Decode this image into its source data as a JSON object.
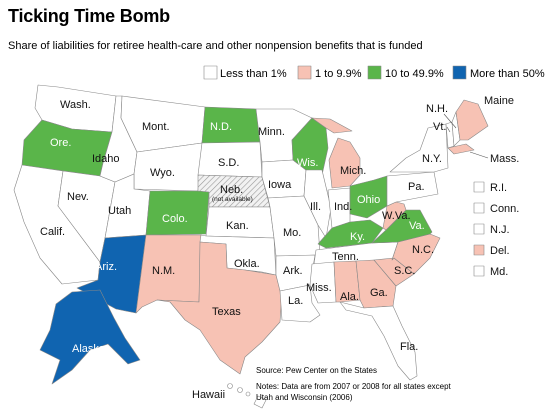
{
  "title": "Ticking Time Bomb",
  "subtitle": "Share of liabilities for retiree health-care and other nonpension benefits that is funded",
  "colors": {
    "less_than_1": "#ffffff",
    "1_to_9_9": "#f7c2b4",
    "10_to_49_9": "#5ab54a",
    "more_than_50": "#1064b0",
    "not_available": "hatch-gray",
    "border": "#888888"
  },
  "legend": [
    {
      "key": "less_than_1",
      "label": "Less than 1%"
    },
    {
      "key": "1_to_9_9",
      "label": "1 to 9.9%"
    },
    {
      "key": "10_to_49_9",
      "label": "10 to 49.9%"
    },
    {
      "key": "more_than_50",
      "label": "More than 50%"
    }
  ],
  "states": {
    "Wash.": "less_than_1",
    "Ore.": "10_to_49_9",
    "Calif.": "less_than_1",
    "Nev.": "less_than_1",
    "Idaho": "less_than_1",
    "Mont.": "less_than_1",
    "Wyo.": "less_than_1",
    "Utah": "less_than_1",
    "Ariz.": "more_than_50",
    "Colo.": "10_to_49_9",
    "N.M.": "1_to_9_9",
    "N.D.": "10_to_49_9",
    "S.D.": "less_than_1",
    "Neb.": "not_available",
    "Kan.": "less_than_1",
    "Okla.": "less_than_1",
    "Texas": "1_to_9_9",
    "Minn.": "less_than_1",
    "Iowa": "less_than_1",
    "Mo.": "less_than_1",
    "Ark.": "less_than_1",
    "La.": "less_than_1",
    "Wis.": "10_to_49_9",
    "Ill.": "less_than_1",
    "Mich.": "1_to_9_9",
    "Ind.": "less_than_1",
    "Ohio": "10_to_49_9",
    "Ky.": "10_to_49_9",
    "Tenn.": "less_than_1",
    "Miss.": "less_than_1",
    "Ala.": "1_to_9_9",
    "Ga.": "1_to_9_9",
    "Fla.": "less_than_1",
    "S.C.": "1_to_9_9",
    "N.C.": "1_to_9_9",
    "Va.": "10_to_49_9",
    "W.Va.": "1_to_9_9",
    "Pa.": "less_than_1",
    "N.Y.": "less_than_1",
    "Vt.": "less_than_1",
    "N.H.": "less_than_1",
    "Maine": "1_to_9_9",
    "Mass.": "1_to_9_9",
    "R.I.": "less_than_1",
    "Conn.": "less_than_1",
    "N.J.": "less_than_1",
    "Del.": "1_to_9_9",
    "Md.": "less_than_1",
    "Alaska": "more_than_50",
    "Hawaii": "less_than_1"
  },
  "labels": {
    "wash": "Wash.",
    "ore": "Ore.",
    "calif": "Calif.",
    "nev": "Nev.",
    "idaho": "Idaho",
    "mont": "Mont.",
    "wyo": "Wyo.",
    "utah": "Utah",
    "ariz": "Ariz.",
    "colo": "Colo.",
    "nm": "N.M.",
    "nd": "N.D.",
    "sd": "S.D.",
    "neb": "Neb.",
    "neb_note": "(not available)",
    "kan": "Kan.",
    "okla": "Okla.",
    "texas": "Texas",
    "minn": "Minn.",
    "iowa": "Iowa",
    "mo": "Mo.",
    "ark": "Ark.",
    "la": "La.",
    "wis": "Wis.",
    "ill": "Ill.",
    "mich": "Mich.",
    "ind": "Ind.",
    "ohio": "Ohio",
    "ky": "Ky.",
    "tenn": "Tenn.",
    "miss": "Miss.",
    "ala": "Ala.",
    "ga": "Ga.",
    "fla": "Fla.",
    "sc": "S.C.",
    "nc": "N.C.",
    "va": "Va.",
    "wva": "W.Va.",
    "pa": "Pa.",
    "ny": "N.Y.",
    "vt": "Vt.",
    "nh": "N.H.",
    "maine": "Maine",
    "mass": "Mass.",
    "alaska": "Alaska",
    "hawaii": "Hawaii"
  },
  "small_states": [
    {
      "name": "R.I.",
      "key": "less_than_1"
    },
    {
      "name": "Conn.",
      "key": "less_than_1"
    },
    {
      "name": "N.J.",
      "key": "less_than_1"
    },
    {
      "name": "Del.",
      "key": "1_to_9_9"
    },
    {
      "name": "Md.",
      "key": "less_than_1"
    }
  ],
  "source": "Source: Pew Center on the States",
  "notes_line1": "Notes: Data are from 2007 or 2008 for all states except",
  "notes_line2": "Utah and Wisconsin (2006)"
}
